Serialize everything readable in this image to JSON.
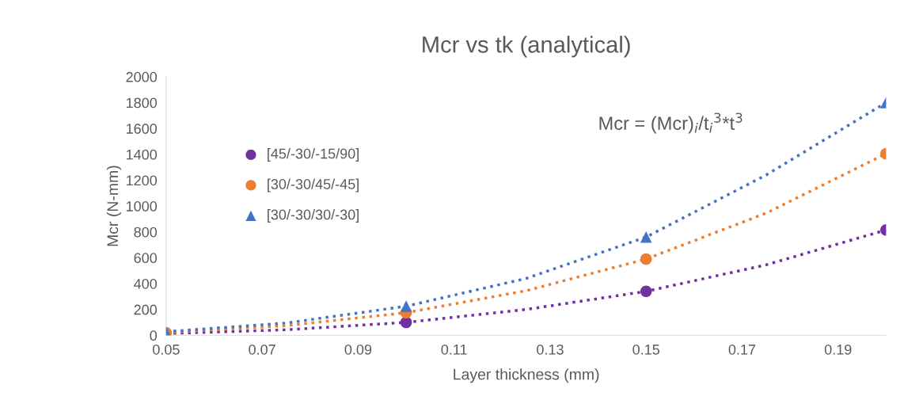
{
  "chart_data": {
    "type": "scatter",
    "title": "Mcr vs tk (analytical)",
    "xlabel": "Layer thickness (mm)",
    "ylabel": "Mcr (N-mm)",
    "annotations": [
      "Mcr = (Mcr)$_{i}$/t$_{i}$$^{3}$*t$^{3}$"
    ],
    "x": [
      0.05,
      0.1,
      0.15,
      0.2
    ],
    "series": [
      {
        "name": "[45/-30/-15/90]",
        "color": "#7030a0",
        "marker": "circle",
        "values": [
          null,
          100,
          340,
          815
        ]
      },
      {
        "name": "[30/-30/45/-45]",
        "color": "#ed7d31",
        "marker": "circle",
        "values": [
          20,
          175,
          590,
          1405
        ]
      },
      {
        "name": "[30/-30/30/-30]",
        "color": "#4472c4",
        "marker": "triangle",
        "values": [
          22,
          225,
          760,
          1800
        ]
      },
      {
        "type": "line",
        "color": "#7030a0",
        "line_style": "dotted",
        "marker": "none",
        "x": [
          0.05,
          0.075,
          0.1,
          0.125,
          0.15,
          0.175,
          0.2
        ],
        "values": [
          13,
          43,
          100,
          200,
          340,
          545,
          815
        ]
      },
      {
        "type": "line",
        "color": "#ed7d31",
        "line_style": "dotted",
        "marker": "none",
        "x": [
          0.05,
          0.075,
          0.1,
          0.125,
          0.15,
          0.175,
          0.2
        ],
        "values": [
          22,
          75,
          175,
          345,
          590,
          945,
          1405
        ]
      },
      {
        "type": "line",
        "color": "#4472c4",
        "line_style": "dotted",
        "marker": "none",
        "x": [
          0.05,
          0.075,
          0.1,
          0.125,
          0.15,
          0.175,
          0.2
        ],
        "values": [
          28,
          95,
          225,
          440,
          760,
          1240,
          1800
        ]
      }
    ],
    "xlim": [
      0.05,
      0.2
    ],
    "xticks": [
      0.05,
      0.07,
      0.09,
      0.11,
      0.13,
      0.15,
      0.17,
      0.19
    ],
    "ylim": [
      0,
      2000
    ],
    "yticks": [
      0,
      200,
      400,
      600,
      800,
      1000,
      1200,
      1400,
      1600,
      1800,
      2000
    ],
    "grid": false,
    "legend": "left"
  }
}
